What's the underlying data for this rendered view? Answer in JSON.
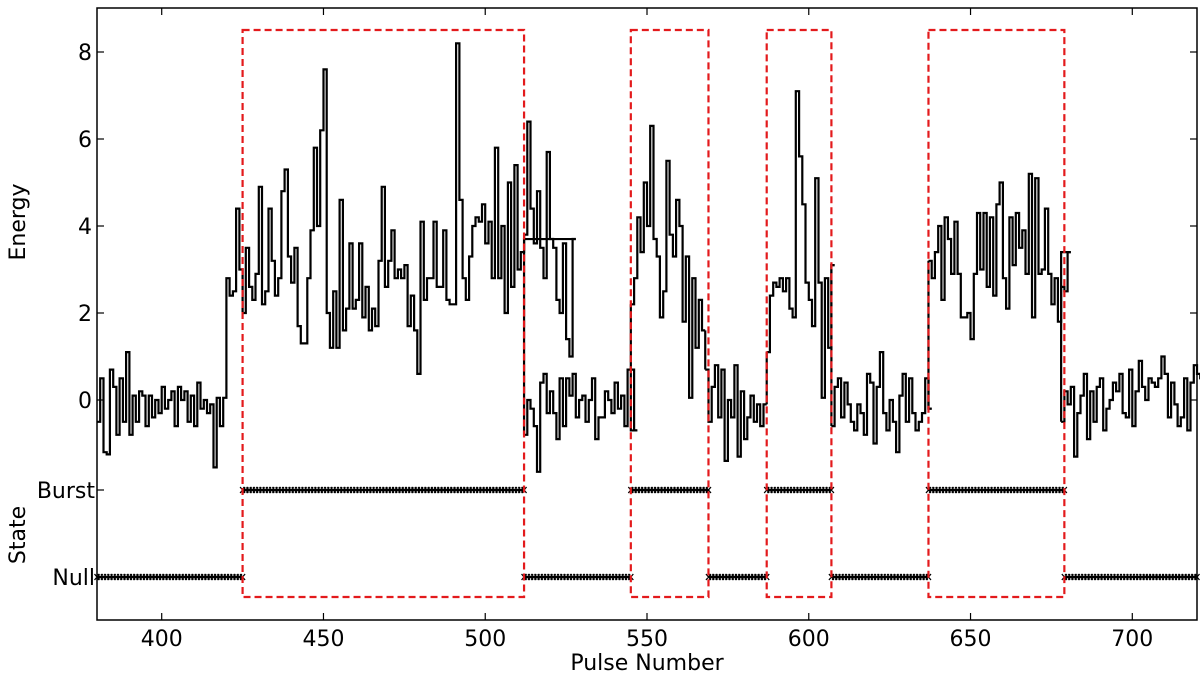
{
  "chart_data": {
    "type": "line",
    "xlabel": "Pulse Number",
    "xlim": [
      380,
      720
    ],
    "xticks": [
      400,
      450,
      500,
      550,
      600,
      650,
      700
    ],
    "panels": {
      "energy": {
        "ylabel": "Energy",
        "ylim": [
          -1.5,
          9
        ],
        "yticks": [
          0,
          2,
          4,
          6,
          8
        ],
        "series": [
          {
            "style": "step",
            "color": "#000000",
            "x0": 380,
            "values": [
              -0.5,
              0.5,
              -1.2,
              -1.25,
              0.7,
              0.3,
              -0.8,
              0.5,
              -0.5,
              1.1,
              -0.8,
              0.1,
              -0.5,
              0.2,
              0.1,
              -0.6,
              0.1,
              -0.4,
              0.0,
              -0.3,
              0.3,
              -0.2,
              0.0,
              0.2,
              -0.6,
              0.3,
              0.0,
              0.2,
              -0.5,
              0.1,
              -0.6,
              0.4,
              -0.2,
              0.0,
              -0.3,
              -0.1,
              -1.55,
              0.05,
              -0.6,
              0.05,
              2.8,
              2.4,
              2.5,
              4.4,
              3.0,
              2.0,
              3.5,
              2.6,
              2.3,
              2.9,
              4.9,
              2.2,
              2.5,
              4.4,
              3.2,
              2.4,
              2.8,
              4.8,
              5.3,
              3.3,
              2.7,
              3.5,
              1.7,
              1.3,
              1.3,
              2.8,
              3.9,
              5.8,
              4.0,
              6.2,
              7.6,
              2.0,
              1.2,
              2.5,
              1.2,
              4.6,
              1.6,
              2.1,
              3.6,
              2.1,
              2.3,
              3.6,
              1.9,
              2.6,
              1.6,
              2.1,
              1.7,
              3.2,
              4.9,
              2.6,
              3.2,
              3.9,
              2.8,
              3.0,
              2.8,
              3.1,
              1.7,
              2.4,
              1.6,
              0.6,
              4.1,
              2.3,
              2.8,
              2.8,
              4.1,
              2.6,
              2.6,
              3.9,
              2.3,
              2.2,
              2.2,
              8.2,
              4.6,
              2.8,
              2.3,
              3.3,
              4.0,
              4.2,
              4.1,
              4.5,
              3.6,
              4.1,
              2.8,
              5.8,
              2.8,
              4.0,
              2.0,
              5.0,
              2.6,
              5.4,
              3.0,
              3.4,
              3.8,
              6.4,
              4.4,
              3.6,
              4.8,
              3.5,
              2.8,
              5.7,
              3.7,
              3.5,
              2.3,
              2.0,
              3.6,
              1.4,
              1.0,
              3.7
            ],
            "segments": [
              {
                "x0": 512,
                "values": [
                  -0.8,
                  0.0,
                  -0.2,
                  -0.6,
                  -1.65,
                  0.4,
                  0.6,
                  -0.3,
                  0.2,
                  -0.3,
                  -0.9,
                  0.5,
                  -0.6,
                  0.5,
                  0.1,
                  0.6,
                  -0.4,
                  0.0,
                  0.1,
                  -0.5,
                  0.0,
                  0.5,
                  -0.9,
                  -0.4,
                  -0.4,
                  0.2,
                  0.0,
                  -0.3,
                  0.4,
                  -0.2,
                  0.1,
                  -0.6,
                  0.7,
                  0.7,
                  -0.7
                ]
              },
              {
                "x0": 545,
                "values": [
                  2.2,
                  2.8,
                  4.2,
                  3.4,
                  5.0,
                  4.0,
                  6.3,
                  3.7,
                  3.3,
                  1.9,
                  2.5,
                  5.5,
                  3.8,
                  3.3,
                  4.6,
                  4.0,
                  1.8,
                  3.3,
                  0.05,
                  2.8,
                  1.2,
                  2.3,
                  1.6
                ]
              },
              {
                "x0": 568,
                "values": [
                  0.7,
                  -0.5,
                  0.3,
                  0.8,
                  -0.4,
                  0.7,
                  -1.4,
                  0.0,
                  -0.4,
                  0.8,
                  -1.3,
                  0.2,
                  -0.9,
                  -0.4,
                  0.1,
                  -0.5,
                  -0.1,
                  -0.6,
                  -0.1
                ]
              },
              {
                "x0": 587,
                "values": [
                  1.1,
                  2.4,
                  2.7,
                  2.6,
                  2.8,
                  2.5,
                  2.8,
                  2.1,
                  1.9,
                  7.1,
                  5.6,
                  4.5,
                  2.7,
                  2.3,
                  1.7,
                  5.1,
                  2.7,
                  0.05,
                  2.8,
                  1.2,
                  3.1
                ]
              },
              {
                "x0": 607,
                "values": [
                  -0.6,
                  0.3,
                  0.5,
                  -0.4,
                  0.4,
                  -0.1,
                  -0.5,
                  -0.7,
                  -0.1,
                  -0.3,
                  -0.8,
                  0.6,
                  0.4,
                  -1.0,
                  0.3,
                  1.1,
                  -0.3,
                  -0.7,
                  0.0,
                  -0.5,
                  -1.2,
                  0.1,
                  0.6,
                  -0.5,
                  0.5,
                  -0.3,
                  -0.7,
                  -0.5,
                  -0.3,
                  0.5,
                  -0.2
                ]
              },
              {
                "x0": 637,
                "values": [
                  3.2,
                  2.8,
                  3.4,
                  4.0,
                  2.3,
                  4.2,
                  3.7,
                  2.9,
                  4.1,
                  2.9,
                  1.9,
                  1.9,
                  2.0,
                  1.4,
                  2.9,
                  4.3,
                  3.0,
                  4.3,
                  2.6,
                  4.2,
                  2.4,
                  4.5,
                  5.0,
                  2.8,
                  2.1,
                  4.2,
                  3.1,
                  4.3,
                  3.5,
                  3.9,
                  2.9,
                  5.2,
                  1.9,
                  5.1,
                  2.9,
                  3.0,
                  4.4,
                  2.9,
                  2.2,
                  2.8,
                  1.8,
                  2.6,
                  2.5,
                  3.4
                ]
              },
              {
                "x0": 678,
                "values": [
                  -0.5,
                  0.2,
                  -0.1,
                  0.3,
                  -1.3,
                  -0.3,
                  0.1,
                  0.6,
                  -0.9,
                  0.2,
                  -0.5,
                  0.3,
                  0.5,
                  -0.7,
                  -0.2,
                  0.0,
                  0.4,
                  0.2,
                  0.6,
                  -0.3,
                  -0.4,
                  0.7,
                  -0.6,
                  0.2,
                  0.9,
                  0.3,
                  0.0,
                  0.5,
                  0.4,
                  0.3,
                  0.5,
                  1.0,
                  0.6,
                  -0.4,
                  0.4,
                  -0.1,
                  -0.6,
                  -0.4,
                  0.5,
                  -0.7,
                  0.4,
                  0.8,
                  0.6,
                  0.5,
                  -0.2
                ]
              }
            ]
          }
        ]
      },
      "state": {
        "ylabel": "State",
        "yticks": [
          "Burst",
          "Null"
        ],
        "ylim_labels": [
          "Null",
          "Burst"
        ],
        "intervals": [
          {
            "state": "Null",
            "x": [
              380,
              425
            ]
          },
          {
            "state": "Burst",
            "x": [
              425,
              512
            ]
          },
          {
            "state": "Null",
            "x": [
              512,
              545
            ]
          },
          {
            "state": "Burst",
            "x": [
              545,
              569
            ]
          },
          {
            "state": "Null",
            "x": [
              569,
              587
            ]
          },
          {
            "state": "Burst",
            "x": [
              587,
              607
            ]
          },
          {
            "state": "Null",
            "x": [
              607,
              637
            ]
          },
          {
            "state": "Burst",
            "x": [
              637,
              679
            ]
          },
          {
            "state": "Null",
            "x": [
              679,
              720
            ]
          }
        ]
      }
    },
    "annotations": {
      "burst_boxes": [
        [
          425,
          512
        ],
        [
          545,
          569
        ],
        [
          587,
          607
        ],
        [
          637,
          679
        ]
      ],
      "box_color": "#e31a1c",
      "box_style": "dashed"
    }
  }
}
